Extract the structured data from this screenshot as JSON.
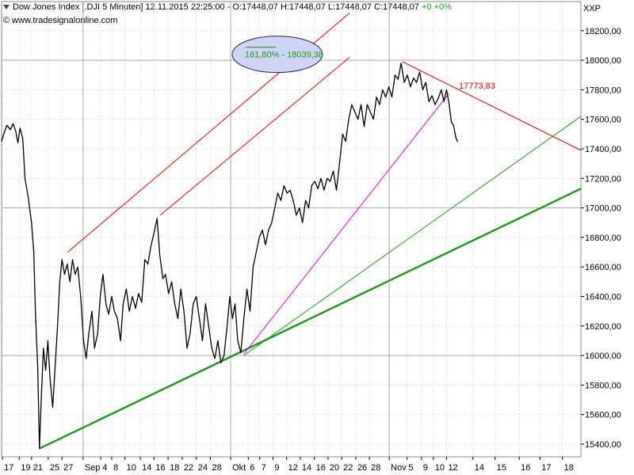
{
  "header": {
    "indicator": "down-triangle-icon",
    "info": "Dow Jones Index [.DJI  5 Minuten] 12.11.2015 22:25:00 - O:17448,07 H:17448,07 L:17448,07 C:17448,07",
    "change": "+0 +0%",
    "source_symbol": "©",
    "source": "www.tradesignalonline.com",
    "unit": "XXP"
  },
  "colors": {
    "price": "#000000",
    "trend_main": "#1a9a1a",
    "trend_thin": "#1a9a1a",
    "channel": "#dd0000",
    "magenta": "#e000e0",
    "ellipse_fill": "#d0d4f4",
    "ellipse_stroke": "#202060",
    "annotation_green": "#1a9a1a",
    "annotation_red": "#dd0000",
    "gridline": "#aaaaaa"
  },
  "chart_data": {
    "type": "line",
    "ylim": [
      15300,
      18400
    ],
    "y_ticks": [
      15400,
      15600,
      15800,
      16000,
      16200,
      16400,
      16600,
      16800,
      17000,
      17200,
      17400,
      17600,
      17800,
      18000,
      18200
    ],
    "y_tick_labels": [
      "15400,00",
      "15600,00",
      "15800,00",
      "16000,00",
      "16200,00",
      "16400,00",
      "16600,00",
      "16800,00",
      "17000,00",
      "17200,00",
      "17400,00",
      "17600,00",
      "17800,00",
      "18000,00",
      "18200,00"
    ],
    "x_ticks": [
      "17",
      "19",
      "21",
      "25",
      "27",
      "Sep",
      "4",
      "8",
      "10",
      "14",
      "16",
      "18",
      "22",
      "24",
      "28",
      "Okt",
      "6",
      "7",
      "9",
      "12",
      "14",
      "16",
      "20",
      "22",
      "26",
      "28",
      "Nov",
      "5",
      "9",
      "10",
      "12",
      "14",
      "15",
      "16",
      "17",
      "18"
    ],
    "x_tick_index": [
      0.2,
      4,
      6.8,
      10.6,
      13.7,
      18.5,
      22.5,
      25,
      28,
      31.5,
      34.6,
      37.8,
      41,
      44.2,
      47.4,
      52,
      56,
      58.6,
      61.6,
      64.7,
      67.8,
      71,
      74.1,
      77.2,
      80.4,
      83.5,
      88,
      92,
      95.3,
      98,
      101,
      107,
      112,
      117.5,
      122.2,
      127.3
    ],
    "x_domain": [
      0,
      131.5
    ],
    "hgrid": [
      16000,
      17000,
      18000
    ],
    "vgrid_labels": [
      "Sep",
      "Okt",
      "Nov"
    ],
    "series": [
      {
        "values": [
          [
            0,
            17450
          ],
          [
            0.6,
            17510
          ],
          [
            1.2,
            17560
          ],
          [
            2,
            17530
          ],
          [
            2.6,
            17570
          ],
          [
            3.2,
            17520
          ],
          [
            3.7,
            17440
          ],
          [
            4.2,
            17540
          ],
          [
            4.8,
            17470
          ],
          [
            5.3,
            17200
          ],
          [
            6,
            17080
          ],
          [
            6.8,
            16900
          ],
          [
            7.3,
            16700
          ],
          [
            7.7,
            16280
          ],
          [
            8.2,
            15920
          ],
          [
            8.6,
            15370
          ],
          [
            9.0,
            15700
          ],
          [
            9.5,
            16050
          ],
          [
            10,
            15900
          ],
          [
            10.5,
            16100
          ],
          [
            11,
            15850
          ],
          [
            11.6,
            15650
          ],
          [
            12.1,
            15900
          ],
          [
            12.7,
            16200
          ],
          [
            13.2,
            16500
          ],
          [
            13.7,
            16650
          ],
          [
            14.3,
            16550
          ],
          [
            14.9,
            16620
          ],
          [
            15.5,
            16500
          ],
          [
            16.1,
            16650
          ],
          [
            16.7,
            16550
          ],
          [
            17.3,
            16600
          ],
          [
            18,
            16380
          ],
          [
            18.6,
            16100
          ],
          [
            19.2,
            15980
          ],
          [
            19.8,
            16150
          ],
          [
            20.5,
            16300
          ],
          [
            21.1,
            16050
          ],
          [
            21.8,
            16150
          ],
          [
            22.4,
            16400
          ],
          [
            23,
            16550
          ],
          [
            23.7,
            16350
          ],
          [
            24.3,
            16280
          ],
          [
            25,
            16400
          ],
          [
            25.6,
            16300
          ],
          [
            26.3,
            16250
          ],
          [
            27,
            16100
          ],
          [
            27.6,
            16350
          ],
          [
            28.3,
            16450
          ],
          [
            29,
            16300
          ],
          [
            29.7,
            16400
          ],
          [
            30.4,
            16320
          ],
          [
            31.1,
            16420
          ],
          [
            31.8,
            16360
          ],
          [
            32.5,
            16650
          ],
          [
            33.2,
            16620
          ],
          [
            33.9,
            16740
          ],
          [
            34.6,
            16830
          ],
          [
            35.3,
            16930
          ],
          [
            35.9,
            16680
          ],
          [
            36.6,
            16520
          ],
          [
            37.2,
            16550
          ],
          [
            37.9,
            16420
          ],
          [
            38.6,
            16500
          ],
          [
            39.3,
            16350
          ],
          [
            40,
            16250
          ],
          [
            40.7,
            16450
          ],
          [
            41.4,
            16300
          ],
          [
            42.1,
            16050
          ],
          [
            42.8,
            16150
          ],
          [
            43.5,
            16350
          ],
          [
            44.2,
            16400
          ],
          [
            44.9,
            16250
          ],
          [
            45.6,
            16100
          ],
          [
            46.3,
            16350
          ],
          [
            47,
            16200
          ],
          [
            47.7,
            16050
          ],
          [
            48.4,
            15980
          ],
          [
            49.1,
            16100
          ],
          [
            49.8,
            15950
          ],
          [
            50.5,
            16000
          ],
          [
            51.2,
            16200
          ],
          [
            51.8,
            16400
          ],
          [
            52.4,
            16250
          ],
          [
            53,
            16350
          ],
          [
            53.6,
            16100
          ],
          [
            54.3,
            16020
          ],
          [
            55,
            16250
          ],
          [
            55.7,
            16450
          ],
          [
            56.4,
            16300
          ],
          [
            57.1,
            16600
          ],
          [
            57.8,
            16700
          ],
          [
            58.5,
            16800
          ],
          [
            59.2,
            16850
          ],
          [
            59.9,
            16750
          ],
          [
            60.6,
            16850
          ],
          [
            61.3,
            16900
          ],
          [
            62,
            17000
          ],
          [
            62.7,
            17100
          ],
          [
            63.4,
            17050
          ],
          [
            64.1,
            17150
          ],
          [
            64.8,
            17100
          ],
          [
            65.5,
            17120
          ],
          [
            66.2,
            17050
          ],
          [
            66.9,
            16950
          ],
          [
            67.6,
            17000
          ],
          [
            68.3,
            16900
          ],
          [
            69,
            17050
          ],
          [
            69.7,
            17000
          ],
          [
            70.4,
            17150
          ],
          [
            71.1,
            17180
          ],
          [
            71.8,
            17130
          ],
          [
            72.5,
            17200
          ],
          [
            73.2,
            17120
          ],
          [
            73.9,
            17200
          ],
          [
            74.6,
            17180
          ],
          [
            75.3,
            17250
          ],
          [
            76,
            17120
          ],
          [
            76.7,
            17300
          ],
          [
            77.4,
            17500
          ],
          [
            78.1,
            17450
          ],
          [
            78.8,
            17600
          ],
          [
            79.5,
            17700
          ],
          [
            80.2,
            17650
          ],
          [
            80.9,
            17600
          ],
          [
            81.6,
            17700
          ],
          [
            82.3,
            17550
          ],
          [
            83,
            17700
          ],
          [
            83.7,
            17650
          ],
          [
            84.4,
            17600
          ],
          [
            85.1,
            17750
          ],
          [
            85.8,
            17700
          ],
          [
            86.5,
            17800
          ],
          [
            87.2,
            17750
          ],
          [
            87.9,
            17820
          ],
          [
            88.6,
            17750
          ],
          [
            89.3,
            17900
          ],
          [
            90,
            17870
          ],
          [
            90.7,
            17980
          ],
          [
            91.4,
            17850
          ],
          [
            92.1,
            17900
          ],
          [
            92.8,
            17820
          ],
          [
            93.5,
            17880
          ],
          [
            94.2,
            17850
          ],
          [
            94.9,
            17920
          ],
          [
            95.6,
            17800
          ],
          [
            96.3,
            17850
          ],
          [
            97,
            17720
          ],
          [
            97.7,
            17760
          ],
          [
            98.4,
            17700
          ],
          [
            99.1,
            17740
          ],
          [
            99.8,
            17800
          ],
          [
            100.4,
            17720
          ],
          [
            101,
            17800
          ],
          [
            101.6,
            17700
          ],
          [
            102.1,
            17580
          ],
          [
            102.6,
            17560
          ],
          [
            103.1,
            17480
          ],
          [
            103.5,
            17448
          ]
        ]
      }
    ],
    "trendlines": [
      {
        "kind": "trend_main",
        "from": [
          8.6,
          15370
        ],
        "to": [
          131.5,
          17130
        ]
      },
      {
        "kind": "trend_thin",
        "from": [
          55,
          16000
        ],
        "to": [
          131.5,
          17620
        ]
      },
      {
        "kind": "channel",
        "from": [
          15,
          16700
        ],
        "to": [
          79,
          18320
        ]
      },
      {
        "kind": "channel",
        "from": [
          36,
          16950
        ],
        "to": [
          79,
          18020
        ]
      },
      {
        "kind": "channel",
        "from": [
          91,
          17990
        ],
        "to": [
          131.5,
          17390
        ]
      },
      {
        "kind": "magenta",
        "from": [
          55,
          16010
        ],
        "to": [
          101.5,
          17773
        ]
      }
    ],
    "annotations": [
      {
        "text": "161,80% - 18039,38",
        "color": "annotation_green",
        "x": 52.7,
        "y": 18040,
        "ellipse": true
      },
      {
        "text": "17773,83",
        "color": "annotation_red",
        "x": 103.8,
        "y": 17780,
        "ellipse": false
      }
    ]
  }
}
